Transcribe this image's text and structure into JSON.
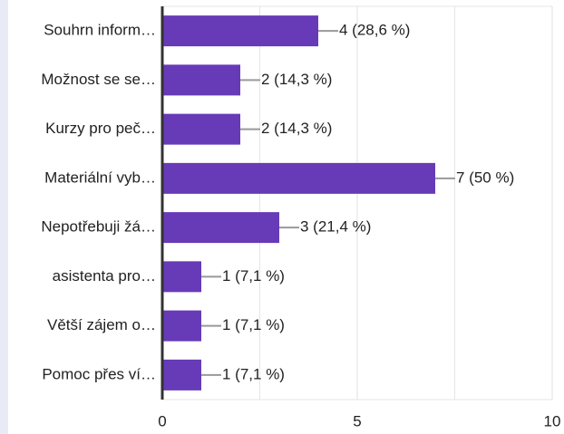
{
  "chart_data": {
    "type": "hbar",
    "categories": [
      "Souhrn inform…",
      "Možnost se se…",
      "Kurzy pro peč…",
      "Materiální vyb…",
      "Nepotřebuji žá…",
      "asistenta pro…",
      "Větší zájem o…",
      "Pomoc přes ví…"
    ],
    "values": [
      4,
      2,
      2,
      7,
      3,
      1,
      1,
      1
    ],
    "value_labels": [
      "4 (28,6 %)",
      "2 (14,3 %)",
      "2 (14,3 %)",
      "7 (50 %)",
      "3 (21,4 %)",
      "1 (7,1 %)",
      "1 (7,1 %)",
      "1 (7,1 %)"
    ],
    "color": "#673ab7",
    "xlim": [
      0,
      10
    ],
    "xticks": [
      0,
      5,
      10
    ],
    "x_minor_ticks": [
      2.5,
      7.5
    ],
    "grid": true
  }
}
